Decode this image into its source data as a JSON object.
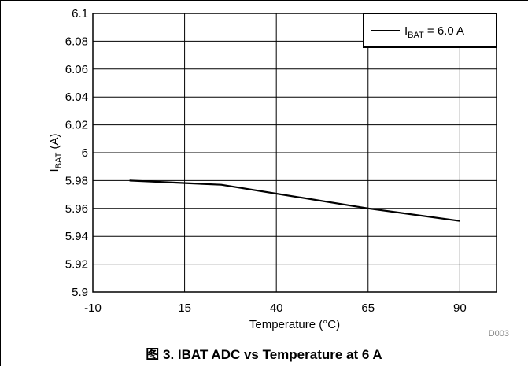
{
  "caption": "图 3. IBAT ADC vs Temperature at 6 A",
  "doc_code": "D003",
  "chart_data": {
    "type": "line",
    "title": "",
    "xlabel": "Temperature (°C)",
    "ylabel": {
      "main": "I",
      "sub": "BAT",
      "unit": " (A)"
    },
    "xlim": [
      -10,
      100
    ],
    "ylim": [
      5.9,
      6.1
    ],
    "x_ticks": [
      "-10",
      "15",
      "40",
      "65",
      "90"
    ],
    "y_ticks": [
      "5.9",
      "5.92",
      "5.94",
      "5.96",
      "5.98",
      "6",
      "6.02",
      "6.04",
      "6.06",
      "6.08",
      "6.1"
    ],
    "grid": true,
    "legend_position": "top-right",
    "series": [
      {
        "name": {
          "main": "I",
          "sub": "BAT",
          "rest": " = 6.0 A"
        },
        "color": "#000000",
        "x": [
          0,
          25,
          65,
          90
        ],
        "y": [
          5.98,
          5.977,
          5.96,
          5.951
        ]
      }
    ]
  }
}
